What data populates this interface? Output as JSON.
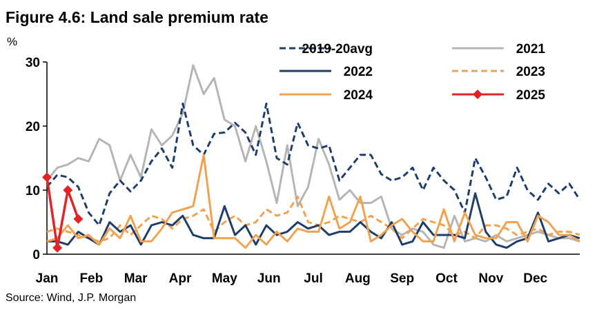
{
  "chart_data": {
    "type": "line",
    "title": "Figure 4.6: Land sale premium rate",
    "unit_label": "%",
    "source": "Source: Wind, J.P. Morgan",
    "xlabel": "",
    "ylabel": "",
    "x_ticks": [
      "Jan",
      "Feb",
      "Mar",
      "Apr",
      "May",
      "Jun",
      "Jul",
      "Aug",
      "Sep",
      "Oct",
      "Nov",
      "Dec"
    ],
    "x_range": [
      1,
      52
    ],
    "ylim": [
      0,
      30
    ],
    "y_ticks": [
      "0",
      "10",
      "20",
      "30"
    ],
    "grid": false,
    "legend_position": "top-right",
    "series": [
      {
        "name": "2019-20avg",
        "color": "#1f3d6b",
        "style": "dashed",
        "x": [
          1,
          2,
          3,
          4,
          5,
          6,
          7,
          8,
          9,
          10,
          11,
          12,
          13,
          14,
          15,
          16,
          17,
          18,
          19,
          20,
          21,
          22,
          23,
          24,
          25,
          26,
          27,
          28,
          29,
          30,
          31,
          32,
          33,
          34,
          35,
          36,
          37,
          38,
          39,
          40,
          41,
          42,
          43,
          44,
          45,
          46,
          47,
          48,
          49,
          50,
          51,
          52
        ],
        "y": [
          10.5,
          12.4,
          12.0,
          10.5,
          6.5,
          4.5,
          9.5,
          11.5,
          9.8,
          11.5,
          14.5,
          16.5,
          13.5,
          23.5,
          17.0,
          15.5,
          18.8,
          19.0,
          20.5,
          19.0,
          15.5,
          23.5,
          15.0,
          14.0,
          20.5,
          17.0,
          16.5,
          17.0,
          11.5,
          13.5,
          15.5,
          15.5,
          12.5,
          11.5,
          12.0,
          13.5,
          10.0,
          13.5,
          11.5,
          10.0,
          6.5,
          15.0,
          12.0,
          8.5,
          9.0,
          13.5,
          10.0,
          8.5,
          11.0,
          9.5,
          11.0,
          8.5
        ]
      },
      {
        "name": "2021",
        "color": "#b5b5b5",
        "style": "solid",
        "x": [
          1,
          2,
          3,
          4,
          5,
          6,
          7,
          8,
          9,
          10,
          11,
          12,
          13,
          14,
          15,
          16,
          17,
          18,
          19,
          20,
          21,
          22,
          23,
          24,
          25,
          26,
          27,
          28,
          29,
          30,
          31,
          32,
          33,
          34,
          35,
          36,
          37,
          38,
          39,
          40,
          41,
          42,
          43,
          44,
          45,
          46,
          47,
          48,
          49,
          50,
          51,
          52
        ],
        "y": [
          11.5,
          13.5,
          14.0,
          15.0,
          14.5,
          18.0,
          17.0,
          11.5,
          15.5,
          12.0,
          19.5,
          17.0,
          18.5,
          22.0,
          29.5,
          25.0,
          27.5,
          21.0,
          20.0,
          14.5,
          20.0,
          14.5,
          8.0,
          17.0,
          7.5,
          10.5,
          18.0,
          14.0,
          8.5,
          10.0,
          8.0,
          8.0,
          9.0,
          4.0,
          3.0,
          4.0,
          3.5,
          1.5,
          1.0,
          6.0,
          2.0,
          2.5,
          2.0,
          3.0,
          2.0,
          2.5,
          3.0,
          3.5,
          3.0,
          2.5,
          2.5,
          2.0
        ]
      },
      {
        "name": "2022",
        "color": "#1f3d6b",
        "style": "solid",
        "x": [
          1,
          2,
          3,
          4,
          5,
          6,
          7,
          8,
          9,
          10,
          11,
          12,
          13,
          14,
          15,
          16,
          17,
          18,
          19,
          20,
          21,
          22,
          23,
          24,
          25,
          26,
          27,
          28,
          29,
          30,
          31,
          32,
          33,
          34,
          35,
          36,
          37,
          38,
          39,
          40,
          41,
          42,
          43,
          44,
          45,
          46,
          47,
          48,
          49,
          50,
          51,
          52
        ],
        "y": [
          2.0,
          2.0,
          1.5,
          3.5,
          2.5,
          1.5,
          5.0,
          3.5,
          4.5,
          1.5,
          4.5,
          5.0,
          4.5,
          6.0,
          3.0,
          2.5,
          2.5,
          7.5,
          3.0,
          4.5,
          1.5,
          4.5,
          3.0,
          3.5,
          5.0,
          4.0,
          4.5,
          3.0,
          3.5,
          3.5,
          5.0,
          3.5,
          2.5,
          5.0,
          1.5,
          2.0,
          5.0,
          3.0,
          3.0,
          3.0,
          2.5,
          9.5,
          3.5,
          1.5,
          1.0,
          2.0,
          2.5,
          6.5,
          2.0,
          2.5,
          3.0,
          2.5
        ]
      },
      {
        "name": "2023",
        "color": "#f0a24f",
        "style": "dashed",
        "x": [
          1,
          2,
          3,
          4,
          5,
          6,
          7,
          8,
          9,
          10,
          11,
          12,
          13,
          14,
          15,
          16,
          17,
          18,
          19,
          20,
          21,
          22,
          23,
          24,
          25,
          26,
          27,
          28,
          29,
          30,
          31,
          32,
          33,
          34,
          35,
          36,
          37,
          38,
          39,
          40,
          41,
          42,
          43,
          44,
          45,
          46,
          47,
          48,
          49,
          50,
          51,
          52
        ],
        "y": [
          3.5,
          4.0,
          3.5,
          3.0,
          2.5,
          2.0,
          2.5,
          4.5,
          3.0,
          4.5,
          6.0,
          5.5,
          4.0,
          5.5,
          6.0,
          7.0,
          3.5,
          5.0,
          6.0,
          4.5,
          5.0,
          7.0,
          6.0,
          6.5,
          9.0,
          5.0,
          4.5,
          5.0,
          6.0,
          5.5,
          5.0,
          6.0,
          5.0,
          4.0,
          2.5,
          4.0,
          5.5,
          5.0,
          4.5,
          3.0,
          3.5,
          2.5,
          4.5,
          4.5,
          4.0,
          3.0,
          3.5,
          4.0,
          3.0,
          3.5,
          3.5,
          3.0
        ]
      },
      {
        "name": "2024",
        "color": "#f0a24f",
        "style": "solid",
        "x": [
          1,
          2,
          3,
          4,
          5,
          6,
          7,
          8,
          9,
          10,
          11,
          12,
          13,
          14,
          15,
          16,
          17,
          18,
          19,
          20,
          21,
          22,
          23,
          24,
          25,
          26,
          27,
          28,
          29,
          30,
          31,
          32,
          33,
          34,
          35,
          36,
          37,
          38,
          39,
          40,
          41,
          42,
          43,
          44,
          45,
          46,
          47,
          48,
          49,
          50,
          51,
          52
        ],
        "y": [
          2.0,
          2.5,
          4.5,
          2.5,
          3.0,
          1.5,
          4.0,
          2.5,
          6.0,
          2.0,
          2.0,
          4.0,
          6.5,
          7.0,
          7.5,
          15.5,
          2.5,
          2.5,
          2.5,
          1.0,
          3.0,
          1.5,
          3.5,
          2.0,
          4.0,
          3.5,
          3.5,
          9.0,
          4.0,
          5.0,
          9.0,
          2.0,
          3.0,
          4.5,
          5.5,
          3.5,
          2.0,
          2.0,
          7.0,
          2.0,
          6.5,
          3.0,
          2.5,
          2.5,
          5.0,
          5.0,
          2.0,
          6.0,
          5.0,
          3.0,
          3.0,
          2.0
        ]
      },
      {
        "name": "2025",
        "color": "#e32226",
        "style": "solid-diamond",
        "x": [
          1,
          2,
          3,
          4
        ],
        "y": [
          12.0,
          1.0,
          10.0,
          5.5
        ]
      }
    ]
  }
}
